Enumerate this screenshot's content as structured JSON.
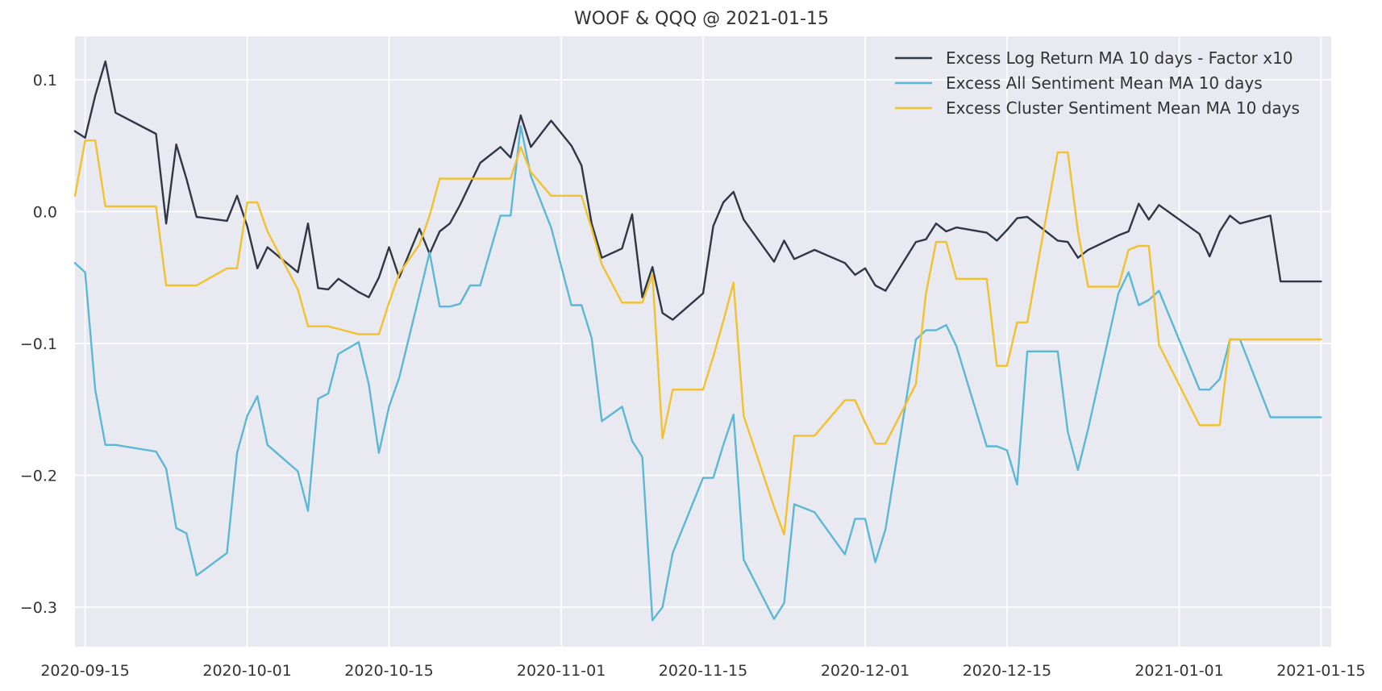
{
  "chart_data": {
    "type": "line",
    "title": "WOOF & QQQ @ 2021-01-15",
    "xlabel": "",
    "ylabel": "",
    "xlim": [
      "2020-09-14",
      "2021-01-16"
    ],
    "ylim": [
      -0.33,
      0.133
    ],
    "grid": true,
    "legend_position": "top-right",
    "x_ticks": [
      "2020-09-15",
      "2020-10-01",
      "2020-10-15",
      "2020-11-01",
      "2020-11-15",
      "2020-12-01",
      "2020-12-15",
      "2021-01-01",
      "2021-01-15"
    ],
    "y_ticks": [
      0.1,
      0.0,
      -0.1,
      -0.2,
      -0.3
    ],
    "y_tick_labels": [
      "0.1",
      "0.0",
      "−0.1",
      "−0.2",
      "−0.3"
    ],
    "x": [
      "2020-09-14",
      "2020-09-15",
      "2020-09-16",
      "2020-09-17",
      "2020-09-18",
      "2020-09-22",
      "2020-09-23",
      "2020-09-24",
      "2020-09-25",
      "2020-09-26",
      "2020-09-29",
      "2020-09-30",
      "2020-10-01",
      "2020-10-02",
      "2020-10-03",
      "2020-10-06",
      "2020-10-07",
      "2020-10-08",
      "2020-10-09",
      "2020-10-10",
      "2020-10-12",
      "2020-10-13",
      "2020-10-14",
      "2020-10-15",
      "2020-10-16",
      "2020-10-18",
      "2020-10-19",
      "2020-10-20",
      "2020-10-21",
      "2020-10-22",
      "2020-10-23",
      "2020-10-24",
      "2020-10-26",
      "2020-10-27",
      "2020-10-28",
      "2020-10-29",
      "2020-10-31",
      "2020-11-02",
      "2020-11-03",
      "2020-11-04",
      "2020-11-05",
      "2020-11-07",
      "2020-11-08",
      "2020-11-09",
      "2020-11-10",
      "2020-11-11",
      "2020-11-12",
      "2020-11-15",
      "2020-11-16",
      "2020-11-17",
      "2020-11-18",
      "2020-11-19",
      "2020-11-22",
      "2020-11-23",
      "2020-11-24",
      "2020-11-26",
      "2020-11-29",
      "2020-11-30",
      "2020-12-01",
      "2020-12-02",
      "2020-12-03",
      "2020-12-06",
      "2020-12-07",
      "2020-12-08",
      "2020-12-09",
      "2020-12-10",
      "2020-12-13",
      "2020-12-14",
      "2020-12-15",
      "2020-12-16",
      "2020-12-17",
      "2020-12-20",
      "2020-12-21",
      "2020-12-22",
      "2020-12-23",
      "2020-12-26",
      "2020-12-27",
      "2020-12-28",
      "2020-12-29",
      "2020-12-30",
      "2021-01-03",
      "2021-01-04",
      "2021-01-05",
      "2021-01-06",
      "2021-01-07",
      "2021-01-10",
      "2021-01-11",
      "2021-01-12",
      "2021-01-13",
      "2021-01-15"
    ],
    "series": [
      {
        "name": "Excess Log Return MA 10 days - Factor x10",
        "color": "#2f3747",
        "values": [
          0.061,
          0.056,
          0.088,
          0.114,
          0.075,
          0.059,
          -0.009,
          0.051,
          0.025,
          -0.004,
          -0.007,
          0.012,
          -0.011,
          -0.043,
          -0.027,
          -0.046,
          -0.009,
          -0.058,
          -0.059,
          -0.051,
          -0.061,
          -0.065,
          -0.05,
          -0.027,
          -0.05,
          -0.013,
          -0.032,
          -0.015,
          -0.009,
          0.005,
          0.021,
          0.037,
          0.049,
          0.041,
          0.073,
          0.049,
          0.069,
          0.05,
          0.035,
          -0.009,
          -0.035,
          -0.028,
          -0.002,
          -0.065,
          -0.042,
          -0.077,
          -0.082,
          -0.062,
          -0.011,
          0.007,
          0.015,
          -0.006,
          -0.038,
          -0.022,
          -0.036,
          -0.029,
          -0.039,
          -0.048,
          -0.043,
          -0.056,
          -0.06,
          -0.023,
          -0.021,
          -0.009,
          -0.015,
          -0.012,
          -0.016,
          -0.022,
          -0.014,
          -0.005,
          -0.004,
          -0.022,
          -0.023,
          -0.035,
          -0.029,
          -0.018,
          -0.015,
          0.006,
          -0.006,
          0.005,
          -0.017,
          -0.034,
          -0.015,
          -0.003,
          -0.009,
          -0.003,
          -0.053,
          -0.053,
          -0.053,
          -0.053
        ]
      },
      {
        "name": "Excess All Sentiment Mean MA 10 days",
        "color": "#5bb8d4",
        "values": [
          -0.039,
          -0.046,
          -0.135,
          -0.177,
          -0.177,
          -0.182,
          -0.195,
          -0.24,
          -0.244,
          -0.276,
          -0.259,
          -0.183,
          -0.155,
          -0.14,
          -0.177,
          -0.197,
          -0.227,
          -0.142,
          -0.138,
          -0.108,
          -0.099,
          -0.131,
          -0.183,
          -0.148,
          -0.126,
          -0.063,
          -0.031,
          -0.072,
          -0.072,
          -0.07,
          -0.056,
          -0.056,
          -0.003,
          -0.003,
          0.065,
          0.027,
          -0.012,
          -0.071,
          -0.071,
          -0.096,
          -0.159,
          -0.148,
          -0.174,
          -0.186,
          -0.31,
          -0.3,
          -0.259,
          -0.202,
          -0.202,
          -0.177,
          -0.154,
          -0.264,
          -0.309,
          -0.297,
          -0.222,
          -0.228,
          -0.26,
          -0.233,
          -0.233,
          -0.266,
          -0.241,
          -0.097,
          -0.09,
          -0.09,
          -0.086,
          -0.102,
          -0.178,
          -0.178,
          -0.181,
          -0.207,
          -0.106,
          -0.106,
          -0.167,
          -0.196,
          -0.165,
          -0.062,
          -0.046,
          -0.071,
          -0.067,
          -0.06,
          -0.135,
          -0.135,
          -0.127,
          -0.097,
          -0.097,
          -0.156,
          -0.156,
          -0.156,
          -0.156,
          -0.156
        ]
      },
      {
        "name": "Excess Cluster Sentiment Mean MA 10 days",
        "color": "#f2c12e",
        "values": [
          0.012,
          0.054,
          0.054,
          0.004,
          0.004,
          0.004,
          -0.056,
          -0.056,
          -0.056,
          -0.056,
          -0.043,
          -0.043,
          0.007,
          0.007,
          -0.015,
          -0.059,
          -0.087,
          -0.087,
          -0.087,
          -0.089,
          -0.093,
          -0.093,
          -0.093,
          -0.069,
          -0.047,
          -0.025,
          -0.003,
          0.025,
          0.025,
          0.025,
          0.025,
          0.025,
          0.025,
          0.025,
          0.049,
          0.03,
          0.012,
          0.012,
          0.012,
          -0.013,
          -0.04,
          -0.069,
          -0.069,
          -0.069,
          -0.048,
          -0.172,
          -0.135,
          -0.135,
          -0.11,
          -0.083,
          -0.054,
          -0.155,
          -0.224,
          -0.245,
          -0.17,
          -0.17,
          -0.143,
          -0.143,
          -0.16,
          -0.176,
          -0.176,
          -0.131,
          -0.062,
          -0.023,
          -0.023,
          -0.051,
          -0.051,
          -0.117,
          -0.117,
          -0.084,
          -0.084,
          0.045,
          0.045,
          -0.015,
          -0.057,
          -0.057,
          -0.029,
          -0.026,
          -0.026,
          -0.101,
          -0.162,
          -0.162,
          -0.162,
          -0.097,
          -0.097,
          -0.097,
          -0.097,
          -0.097,
          -0.097,
          -0.097
        ]
      }
    ]
  }
}
